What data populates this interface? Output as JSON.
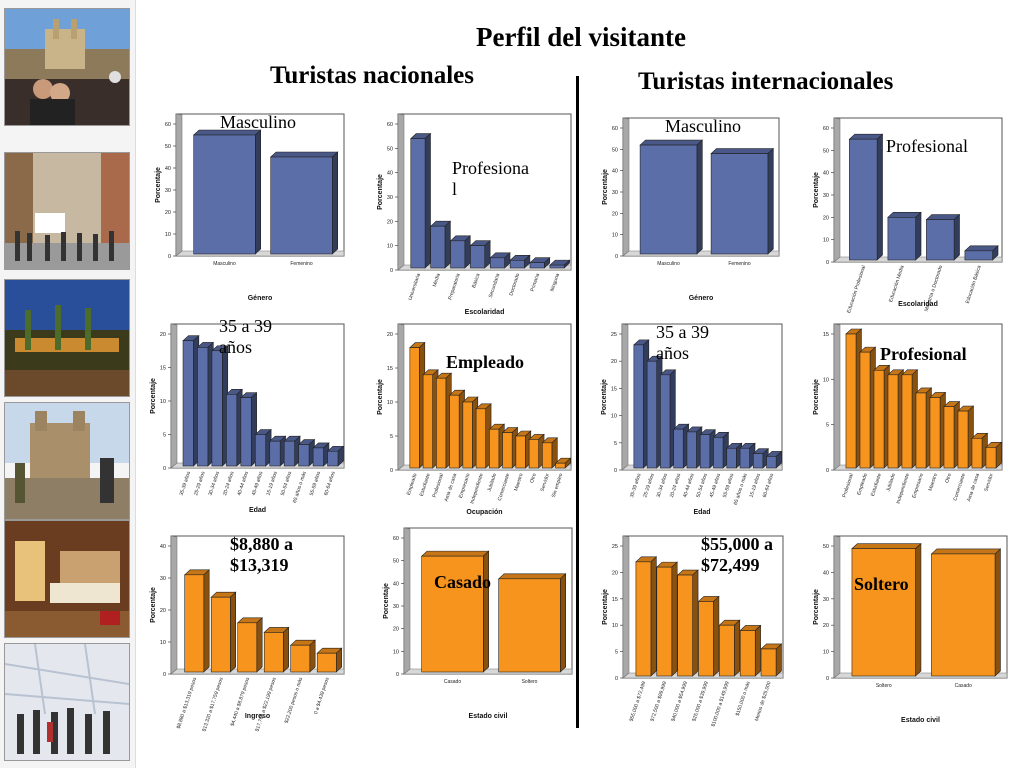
{
  "titles": {
    "main": "Perfil del visitante",
    "nacionales": "Turistas nacionales",
    "internacionales": "Turistas internacionales"
  },
  "colors": {
    "blue": "#5b6ea8",
    "orange": "#f7941d"
  },
  "chart_data": [
    {
      "id": "nac-genero",
      "type": "bar",
      "color": "blue",
      "annotation": "Masculino",
      "categories": [
        "Masculino",
        "Femenino"
      ],
      "values": [
        55,
        45
      ],
      "xlabel": "Género",
      "ylabel": "Porcentaje",
      "ylim": [
        0,
        60
      ],
      "yticks": [
        0,
        10,
        20,
        30,
        40,
        50,
        60
      ]
    },
    {
      "id": "nac-escolaridad",
      "type": "bar",
      "color": "blue",
      "annotation": "Profesiona\nl",
      "categories": [
        "Universitaria",
        "Media",
        "Preparatoria",
        "Básica",
        "Secundaria",
        "Doctorado",
        "Primaria",
        "Ninguna"
      ],
      "values": [
        54,
        18,
        12,
        10,
        5,
        4,
        3,
        2
      ],
      "xlabel": "Escolaridad",
      "ylabel": "Porcentaje",
      "ylim": [
        0,
        60
      ],
      "yticks": [
        0,
        10,
        20,
        30,
        40,
        50,
        60
      ]
    },
    {
      "id": "nac-edad",
      "type": "bar",
      "color": "blue",
      "annotation": "35 a 39\naños",
      "categories": [
        "35-39 años",
        "25-29 años",
        "30-34 años",
        "20-24 años",
        "40-44 años",
        "45-49 años",
        "15-19 años",
        "50-54 años",
        "65 años o más",
        "55-59 años",
        "60-64 años"
      ],
      "values": [
        19,
        18,
        17.5,
        11,
        10.5,
        5,
        4,
        4,
        3.5,
        3,
        2.5
      ],
      "xlabel": "Edad",
      "ylabel": "Porcentaje",
      "ylim": [
        0,
        20
      ],
      "yticks": [
        0,
        5,
        10,
        15,
        20
      ]
    },
    {
      "id": "nac-ocupacion",
      "type": "bar",
      "color": "orange",
      "annotation": "Empleado",
      "categories": [
        "Empleado",
        "Estudiante",
        "Profesional",
        "Ama de casa",
        "Empresario",
        "Independiente",
        "Jubilado",
        "Comerciante",
        "Maestro",
        "Otro",
        "Servidor",
        "Sin empleo"
      ],
      "values": [
        18,
        14,
        13.5,
        11,
        10,
        9,
        6,
        5.5,
        5,
        4.5,
        4,
        1
      ],
      "xlabel": "Ocupación",
      "ylabel": "Porcentaje",
      "ylim": [
        0,
        20
      ],
      "yticks": [
        0,
        5,
        10,
        15,
        20
      ]
    },
    {
      "id": "nac-ingreso",
      "type": "bar",
      "color": "orange",
      "annotation": "$8,880 a\n$13,319",
      "categories": [
        "$8,880 a $13,319 pesos",
        "$13,320 a $17,759 pesos",
        "$4,440 a $8,879 pesos",
        "$17,760 a $22,199 pesos",
        "$22,200 pesos o más",
        "0 a $4,439 pesos"
      ],
      "values": [
        31,
        24,
        16,
        13,
        9,
        6.5
      ],
      "xlabel": "Ingreso",
      "ylabel": "Porcentaje",
      "ylim": [
        0,
        40
      ],
      "yticks": [
        0,
        10,
        20,
        30,
        40
      ]
    },
    {
      "id": "nac-civil",
      "type": "bar",
      "color": "orange",
      "annotation": "Casado",
      "categories": [
        "Casado",
        "Soltero"
      ],
      "values": [
        52,
        42
      ],
      "xlabel": "Estado civil",
      "ylabel": "Porcentaje",
      "ylim": [
        0,
        60
      ],
      "yticks": [
        0,
        10,
        20,
        30,
        40,
        50,
        60
      ]
    },
    {
      "id": "int-genero",
      "type": "bar",
      "color": "blue",
      "annotation": "Masculino",
      "categories": [
        "Masculino",
        "Femenino"
      ],
      "values": [
        52,
        48
      ],
      "xlabel": "Género",
      "ylabel": "Porcentaje",
      "ylim": [
        0,
        60
      ],
      "yticks": [
        0,
        10,
        20,
        30,
        40,
        50,
        60
      ]
    },
    {
      "id": "int-escolaridad",
      "type": "bar",
      "color": "blue",
      "annotation": "Profesional",
      "categories": [
        "Educación Profesional",
        "Educación Media",
        "Maestría o Doctorado",
        "Educación Básica"
      ],
      "values": [
        55,
        20,
        19,
        5
      ],
      "xlabel": "Escolaridad",
      "ylabel": "Porcentaje",
      "ylim": [
        0,
        60
      ],
      "yticks": [
        0,
        10,
        20,
        30,
        40,
        50,
        60
      ]
    },
    {
      "id": "int-edad",
      "type": "bar",
      "color": "blue",
      "annotation": "35 a 39\naños",
      "categories": [
        "35-39 años",
        "25-29 años",
        "30-34 años",
        "20-24 años",
        "40-44 años",
        "50-54 años",
        "45-49 años",
        "55-59 años",
        "65 años o más",
        "15-19 años",
        "60-64 años"
      ],
      "values": [
        23,
        20,
        17.5,
        7.5,
        7,
        6.5,
        6,
        4,
        4,
        3,
        2.5
      ],
      "xlabel": "Edad",
      "ylabel": "Porcentaje",
      "ylim": [
        0,
        25
      ],
      "yticks": [
        0,
        5,
        10,
        15,
        20,
        25
      ]
    },
    {
      "id": "int-ocupacion",
      "type": "bar",
      "color": "orange",
      "annotation": "Profesional",
      "categories": [
        "Profesional",
        "Empleado",
        "Estudiante",
        "Jubilado",
        "Independiente",
        "Empresario",
        "Maestro",
        "Otro",
        "Comerciante",
        "Ama de casa",
        "Servidor"
      ],
      "values": [
        15,
        13,
        11,
        10.5,
        10.5,
        8.5,
        8,
        7,
        6.5,
        3.5,
        2.5
      ],
      "xlabel": "",
      "ylabel": "Porcentaje",
      "ylim": [
        0,
        15
      ],
      "yticks": [
        0,
        5,
        10,
        15
      ]
    },
    {
      "id": "int-ingreso",
      "type": "bar",
      "color": "orange",
      "annotation": "$55,000 a\n$72,499",
      "categories": [
        "$55,000 a $72,499",
        "$72,500 a $99,999",
        "$40,000 a $54,999",
        "$25,000 a $39,999",
        "$100,000 a $149,999",
        "$150,000 o más",
        "Menos de $25,000"
      ],
      "values": [
        22,
        21,
        19.5,
        14.5,
        10,
        9,
        5.5
      ],
      "xlabel": "",
      "ylabel": "Porcentaje",
      "ylim": [
        0,
        25
      ],
      "yticks": [
        0,
        5,
        10,
        15,
        20,
        25
      ]
    },
    {
      "id": "int-civil",
      "type": "bar",
      "color": "orange",
      "annotation": "Soltero",
      "categories": [
        "Soltero",
        "Casado"
      ],
      "values": [
        49,
        47
      ],
      "xlabel": "Estado civil",
      "ylabel": "Porcentaje",
      "ylim": [
        0,
        50
      ],
      "yticks": [
        0,
        10,
        20,
        30,
        40,
        50
      ]
    }
  ]
}
